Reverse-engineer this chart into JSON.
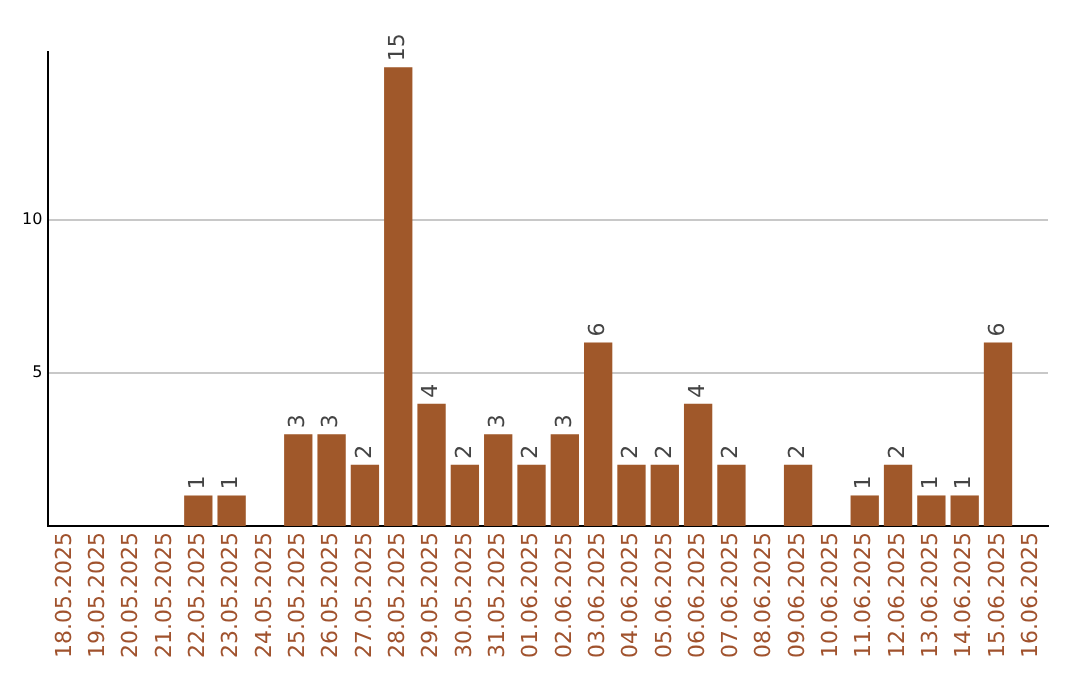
{
  "chart_data": {
    "type": "bar",
    "categories": [
      "18.05.2025",
      "19.05.2025",
      "20.05.2025",
      "21.05.2025",
      "22.05.2025",
      "23.05.2025",
      "24.05.2025",
      "25.05.2025",
      "26.05.2025",
      "27.05.2025",
      "28.05.2025",
      "29.05.2025",
      "30.05.2025",
      "31.05.2025",
      "01.06.2025",
      "02.06.2025",
      "03.06.2025",
      "04.06.2025",
      "05.06.2025",
      "06.06.2025",
      "07.06.2025",
      "08.06.2025",
      "09.06.2025",
      "10.06.2025",
      "11.06.2025",
      "12.06.2025",
      "13.06.2025",
      "14.06.2025",
      "15.06.2025",
      "16.06.2025"
    ],
    "values": [
      0,
      0,
      0,
      0,
      1,
      1,
      0,
      3,
      3,
      2,
      15,
      4,
      2,
      3,
      2,
      3,
      6,
      2,
      2,
      4,
      2,
      0,
      2,
      0,
      1,
      2,
      1,
      1,
      6,
      0
    ],
    "value_labels": [
      null,
      null,
      null,
      null,
      "1",
      "1",
      null,
      "3",
      "3",
      "2",
      "15",
      "4",
      "2",
      "3",
      "2",
      "3",
      "6",
      "2",
      "2",
      "4",
      "2",
      null,
      "2",
      null,
      "1",
      "2",
      "1",
      "1",
      "6",
      null
    ],
    "color": "#a0582a",
    "ylim": [
      0,
      15.5
    ],
    "yticks": [
      5,
      10
    ],
    "grid": "y"
  }
}
